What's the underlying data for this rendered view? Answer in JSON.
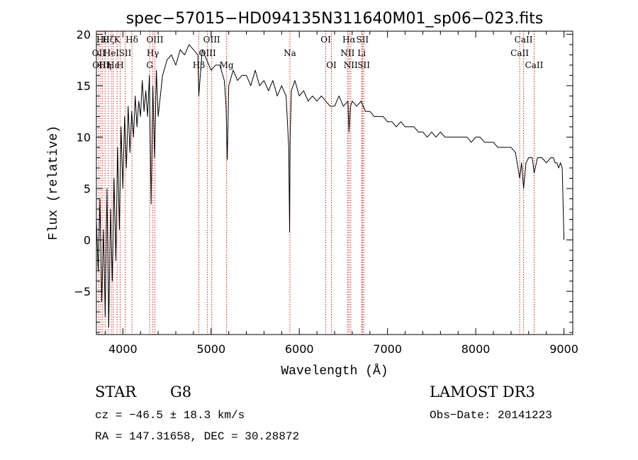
{
  "chart_data": {
    "type": "line",
    "title": "spec−57015−HD094135N311640M01_sp06−023.fits",
    "xlabel": "Wavelength (Å)",
    "ylabel": "Flux (relative)",
    "xlim": [
      3700,
      9100
    ],
    "ylim": [
      -9.2,
      20.3
    ],
    "x_ticks": [
      4000,
      5000,
      6000,
      7000,
      8000,
      9000
    ],
    "x_tick_labels": [
      "4000",
      "5000",
      "6000",
      "7000",
      "8000",
      "9000"
    ],
    "y_ticks": [
      -5,
      0,
      5,
      10,
      15,
      20
    ],
    "y_tick_labels": [
      "−5",
      "0",
      "5",
      "10",
      "15",
      "20"
    ],
    "grid": false,
    "line_color": "#000000",
    "marker_color": "#cc2222",
    "spectrum": {
      "name": "",
      "x": [
        3700,
        3720,
        3740,
        3760,
        3780,
        3800,
        3820,
        3840,
        3860,
        3880,
        3900,
        3920,
        3940,
        3960,
        3980,
        4000,
        4020,
        4040,
        4060,
        4080,
        4100,
        4120,
        4140,
        4160,
        4180,
        4200,
        4220,
        4240,
        4260,
        4280,
        4300,
        4320,
        4340,
        4360,
        4380,
        4400,
        4450,
        4500,
        4550,
        4600,
        4650,
        4700,
        4750,
        4800,
        4850,
        4860,
        4900,
        4950,
        5000,
        5050,
        5100,
        5150,
        5170,
        5183,
        5200,
        5250,
        5300,
        5350,
        5400,
        5450,
        5500,
        5550,
        5600,
        5650,
        5700,
        5750,
        5800,
        5850,
        5880,
        5890,
        5896,
        5910,
        5950,
        6000,
        6050,
        6100,
        6150,
        6200,
        6250,
        6300,
        6350,
        6400,
        6450,
        6500,
        6550,
        6563,
        6580,
        6600,
        6650,
        6700,
        6750,
        6800,
        6850,
        6900,
        6950,
        7000,
        7050,
        7100,
        7150,
        7200,
        7250,
        7300,
        7350,
        7400,
        7450,
        7500,
        7550,
        7600,
        7650,
        7700,
        7750,
        7800,
        7850,
        7900,
        7950,
        8000,
        8050,
        8100,
        8150,
        8200,
        8250,
        8300,
        8350,
        8400,
        8450,
        8498,
        8520,
        8542,
        8570,
        8600,
        8640,
        8662,
        8700,
        8750,
        8800,
        8850,
        8880,
        8900,
        8920,
        8940,
        8960,
        8980,
        9000
      ],
      "y": [
        2.0,
        -3.0,
        4.0,
        -6.0,
        1.0,
        -7.5,
        5.0,
        -8.5,
        3.0,
        -4.0,
        6.0,
        -2.0,
        9.0,
        1.0,
        11.0,
        5.0,
        12.0,
        7.0,
        13.0,
        8.5,
        12.5,
        10.0,
        14.0,
        11.0,
        13.5,
        12.0,
        15.5,
        12.5,
        14.5,
        12.0,
        16.0,
        3.5,
        15.0,
        8.0,
        16.5,
        12.0,
        16.0,
        17.5,
        18.0,
        17.0,
        18.5,
        18.0,
        19.0,
        18.5,
        18.0,
        14.0,
        18.5,
        17.5,
        16.5,
        17.0,
        17.0,
        15.5,
        13.0,
        7.8,
        15.0,
        16.5,
        15.5,
        16.0,
        16.0,
        15.0,
        16.5,
        15.0,
        15.5,
        14.5,
        15.5,
        14.0,
        15.0,
        14.0,
        9.0,
        0.8,
        10.0,
        14.5,
        15.5,
        14.0,
        14.5,
        13.5,
        14.0,
        13.5,
        14.0,
        13.5,
        13.0,
        13.0,
        14.0,
        13.0,
        13.5,
        10.5,
        13.0,
        13.5,
        13.0,
        13.5,
        12.5,
        12.5,
        12.0,
        12.0,
        12.0,
        11.5,
        11.5,
        11.0,
        11.5,
        11.0,
        11.0,
        11.0,
        10.5,
        10.5,
        10.0,
        10.5,
        10.0,
        10.5,
        10.0,
        10.0,
        10.0,
        10.0,
        10.0,
        10.0,
        9.5,
        10.0,
        10.0,
        9.5,
        9.5,
        9.5,
        9.0,
        9.0,
        9.0,
        9.0,
        8.5,
        6.0,
        7.5,
        5.0,
        7.5,
        8.0,
        8.0,
        6.5,
        8.0,
        8.0,
        7.5,
        8.0,
        8.0,
        7.5,
        7.5,
        7.0,
        7.5,
        7.0,
        0.0
      ]
    },
    "lines": [
      {
        "x": 3727,
        "label": "OII",
        "row": 1
      },
      {
        "x": 3750,
        "label": "OIII",
        "row": 2
      },
      {
        "x": 3771,
        "label": "Hθ",
        "row": 0
      },
      {
        "x": 3798,
        "label": "Hη",
        "row": 2
      },
      {
        "x": 3835,
        "label": "Hζ",
        "row": 0
      },
      {
        "x": 3869,
        "label": "HeI",
        "row": 1
      },
      {
        "x": 3889,
        "label": "Hε",
        "row": 2
      },
      {
        "x": 3934,
        "label": "K",
        "row": 0
      },
      {
        "x": 3969,
        "label": "H",
        "row": 2
      },
      {
        "x": 4026,
        "label": "SII",
        "row": 1
      },
      {
        "x": 4102,
        "label": "Hδ",
        "row": 0
      },
      {
        "x": 4304,
        "label": "G",
        "row": 2
      },
      {
        "x": 4340,
        "label": "Hγ",
        "row": 1
      },
      {
        "x": 4363,
        "label": "OIII",
        "row": 0
      },
      {
        "x": 4861,
        "label": "Hβ",
        "row": 2
      },
      {
        "x": 4959,
        "label": "OIII",
        "row": 1
      },
      {
        "x": 5007,
        "label": "OIII",
        "row": 0
      },
      {
        "x": 5175,
        "label": "Mg",
        "row": 2
      },
      {
        "x": 5893,
        "label": "Na",
        "row": 1
      },
      {
        "x": 6300,
        "label": "OI",
        "row": 0
      },
      {
        "x": 6364,
        "label": "OI",
        "row": 2
      },
      {
        "x": 6548,
        "label": "NII",
        "row": 1
      },
      {
        "x": 6563,
        "label": "Hα",
        "row": 0
      },
      {
        "x": 6583,
        "label": "NII",
        "row": 2
      },
      {
        "x": 6707,
        "label": "Li",
        "row": 1
      },
      {
        "x": 6716,
        "label": "SII",
        "row": 0
      },
      {
        "x": 6731,
        "label": "SII",
        "row": 2
      },
      {
        "x": 8498,
        "label": "CaII",
        "row": 1
      },
      {
        "x": 8542,
        "label": "CaII",
        "row": 0
      },
      {
        "x": 8662,
        "label": "CaII",
        "row": 2
      }
    ]
  },
  "info": {
    "object_class": "STAR",
    "subclass": "G8",
    "survey": "LAMOST DR3",
    "redshift_text": "cz = −46.5 ± 18.3 km/s",
    "obs_date_text": "Obs−Date: 20141223",
    "coords_text": "RA = 147.31658, DEC =  30.28872"
  }
}
